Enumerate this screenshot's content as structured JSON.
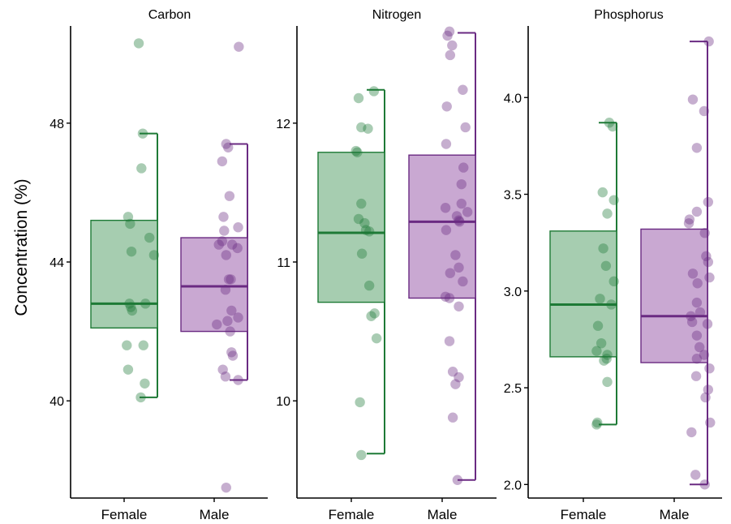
{
  "ylabel": "Concentration (%)",
  "colors": {
    "female": "#1e7a36",
    "male": "#6a2a82",
    "female_fill": "#a6cdb0",
    "male_fill": "#c9a8d2"
  },
  "chart_data": [
    {
      "type": "box-jitter",
      "title": "Carbon",
      "categories": [
        "Female",
        "Male"
      ],
      "ylim": [
        37.2,
        50.8
      ],
      "yticks": [
        40,
        44,
        48
      ],
      "ytick_labels": [
        "40",
        "44",
        "48"
      ],
      "series": [
        {
          "box": {
            "whisker_low": 40.1,
            "q1": 42.1,
            "median": 42.8,
            "q3": 45.2,
            "whisker_high": 47.7
          },
          "points": [
            {
              "j": 0.22,
              "y": 50.3
            },
            {
              "j": 0.28,
              "y": 47.7
            },
            {
              "j": 0.26,
              "y": 46.7
            },
            {
              "j": 0.06,
              "y": 45.3
            },
            {
              "j": 0.09,
              "y": 45.1
            },
            {
              "j": 0.38,
              "y": 44.7
            },
            {
              "j": 0.11,
              "y": 44.3
            },
            {
              "j": 0.45,
              "y": 44.2
            },
            {
              "j": 0.08,
              "y": 42.8
            },
            {
              "j": 0.1,
              "y": 42.7
            },
            {
              "j": 0.32,
              "y": 42.8
            },
            {
              "j": 0.12,
              "y": 42.6
            },
            {
              "j": 0.04,
              "y": 41.6
            },
            {
              "j": 0.29,
              "y": 41.6
            },
            {
              "j": 0.06,
              "y": 40.9
            },
            {
              "j": 0.31,
              "y": 40.5
            },
            {
              "j": 0.25,
              "y": 40.1
            }
          ]
        },
        {
          "box": {
            "whisker_low": 40.6,
            "q1": 42.0,
            "median": 43.3,
            "q3": 44.7,
            "whisker_high": 47.4
          },
          "points": [
            {
              "j": 0.37,
              "y": 50.2
            },
            {
              "j": 0.18,
              "y": 47.4
            },
            {
              "j": 0.21,
              "y": 47.3
            },
            {
              "j": 0.12,
              "y": 46.9
            },
            {
              "j": 0.23,
              "y": 45.9
            },
            {
              "j": 0.14,
              "y": 45.3
            },
            {
              "j": 0.36,
              "y": 45.0
            },
            {
              "j": 0.15,
              "y": 44.9
            },
            {
              "j": 0.07,
              "y": 44.5
            },
            {
              "j": 0.12,
              "y": 44.6
            },
            {
              "j": 0.27,
              "y": 44.5
            },
            {
              "j": 0.35,
              "y": 44.4
            },
            {
              "j": 0.18,
              "y": 44.2
            },
            {
              "j": 0.22,
              "y": 43.5
            },
            {
              "j": 0.25,
              "y": 43.5
            },
            {
              "j": 0.17,
              "y": 43.2
            },
            {
              "j": 0.26,
              "y": 42.6
            },
            {
              "j": 0.36,
              "y": 42.4
            },
            {
              "j": 0.04,
              "y": 42.2
            },
            {
              "j": 0.2,
              "y": 42.3
            },
            {
              "j": 0.24,
              "y": 42.0
            },
            {
              "j": 0.26,
              "y": 41.4
            },
            {
              "j": 0.28,
              "y": 41.3
            },
            {
              "j": 0.13,
              "y": 40.9
            },
            {
              "j": 0.17,
              "y": 40.7
            },
            {
              "j": 0.36,
              "y": 40.6
            },
            {
              "j": 0.18,
              "y": 37.5
            }
          ]
        }
      ]
    },
    {
      "type": "box-jitter",
      "title": "Nitrogen",
      "categories": [
        "Female",
        "Male"
      ],
      "ylim": [
        9.3,
        12.7
      ],
      "yticks": [
        10,
        11,
        12
      ],
      "ytick_labels": [
        "10",
        "11",
        "12"
      ],
      "series": [
        {
          "box": {
            "whisker_low": 9.62,
            "q1": 10.71,
            "median": 11.21,
            "q3": 11.79,
            "whisker_high": 12.24
          },
          "points": [
            {
              "j": 0.34,
              "y": 12.23
            },
            {
              "j": 0.11,
              "y": 12.18
            },
            {
              "j": 0.15,
              "y": 11.97
            },
            {
              "j": 0.25,
              "y": 11.96
            },
            {
              "j": 0.07,
              "y": 11.8
            },
            {
              "j": 0.09,
              "y": 11.79
            },
            {
              "j": 0.15,
              "y": 11.42
            },
            {
              "j": 0.11,
              "y": 11.31
            },
            {
              "j": 0.2,
              "y": 11.28
            },
            {
              "j": 0.22,
              "y": 11.23
            },
            {
              "j": 0.27,
              "y": 11.22
            },
            {
              "j": 0.16,
              "y": 11.06
            },
            {
              "j": 0.27,
              "y": 10.83
            },
            {
              "j": 0.35,
              "y": 10.63
            },
            {
              "j": 0.3,
              "y": 10.61
            },
            {
              "j": 0.38,
              "y": 10.45
            },
            {
              "j": 0.13,
              "y": 9.99
            },
            {
              "j": 0.15,
              "y": 9.61
            }
          ]
        },
        {
          "box": {
            "whisker_low": 9.43,
            "q1": 10.74,
            "median": 11.29,
            "q3": 11.77,
            "whisker_high": 12.65
          },
          "points": [
            {
              "j": 0.11,
              "y": 12.66
            },
            {
              "j": 0.08,
              "y": 12.63
            },
            {
              "j": 0.15,
              "y": 12.56
            },
            {
              "j": 0.12,
              "y": 12.49
            },
            {
              "j": 0.31,
              "y": 12.24
            },
            {
              "j": 0.07,
              "y": 12.12
            },
            {
              "j": 0.35,
              "y": 11.97
            },
            {
              "j": 0.06,
              "y": 11.85
            },
            {
              "j": 0.32,
              "y": 11.68
            },
            {
              "j": 0.29,
              "y": 11.56
            },
            {
              "j": 0.29,
              "y": 11.42
            },
            {
              "j": 0.05,
              "y": 11.39
            },
            {
              "j": 0.38,
              "y": 11.36
            },
            {
              "j": 0.22,
              "y": 11.33
            },
            {
              "j": 0.25,
              "y": 11.3
            },
            {
              "j": 0.26,
              "y": 11.29
            },
            {
              "j": 0.06,
              "y": 11.23
            },
            {
              "j": 0.2,
              "y": 11.05
            },
            {
              "j": 0.25,
              "y": 10.96
            },
            {
              "j": 0.12,
              "y": 10.92
            },
            {
              "j": 0.31,
              "y": 10.86
            },
            {
              "j": 0.05,
              "y": 10.75
            },
            {
              "j": 0.11,
              "y": 10.74
            },
            {
              "j": 0.25,
              "y": 10.68
            },
            {
              "j": 0.11,
              "y": 10.43
            },
            {
              "j": 0.16,
              "y": 10.21
            },
            {
              "j": 0.25,
              "y": 10.17
            },
            {
              "j": 0.2,
              "y": 10.12
            },
            {
              "j": 0.16,
              "y": 9.88
            },
            {
              "j": 0.23,
              "y": 9.43
            }
          ]
        }
      ]
    },
    {
      "type": "box-jitter",
      "title": "Phosphorus",
      "categories": [
        "Female",
        "Male"
      ],
      "ylim": [
        1.93,
        4.37
      ],
      "yticks": [
        2.0,
        2.5,
        3.0,
        3.5,
        4.0
      ],
      "ytick_labels": [
        "2.0",
        "2.5",
        "3.0",
        "3.5",
        "4.0"
      ],
      "series": [
        {
          "box": {
            "whisker_low": 2.31,
            "q1": 2.66,
            "median": 2.93,
            "q3": 3.31,
            "whisker_high": 3.87
          },
          "points": [
            {
              "j": 0.39,
              "y": 3.87
            },
            {
              "j": 0.44,
              "y": 3.85
            },
            {
              "j": 0.29,
              "y": 3.51
            },
            {
              "j": 0.46,
              "y": 3.47
            },
            {
              "j": 0.36,
              "y": 3.4
            },
            {
              "j": 0.3,
              "y": 3.22
            },
            {
              "j": 0.34,
              "y": 3.13
            },
            {
              "j": 0.46,
              "y": 3.05
            },
            {
              "j": 0.25,
              "y": 2.96
            },
            {
              "j": 0.42,
              "y": 2.93
            },
            {
              "j": 0.22,
              "y": 2.82
            },
            {
              "j": 0.27,
              "y": 2.73
            },
            {
              "j": 0.2,
              "y": 2.69
            },
            {
              "j": 0.36,
              "y": 2.67
            },
            {
              "j": 0.35,
              "y": 2.65
            },
            {
              "j": 0.31,
              "y": 2.64
            },
            {
              "j": 0.36,
              "y": 2.53
            },
            {
              "j": 0.21,
              "y": 2.32
            },
            {
              "j": 0.2,
              "y": 2.31
            }
          ]
        },
        {
          "box": {
            "whisker_low": 2.0,
            "q1": 2.63,
            "median": 2.87,
            "q3": 3.32,
            "whisker_high": 4.29
          },
          "points": [
            {
              "j": 0.52,
              "y": 4.29
            },
            {
              "j": 0.28,
              "y": 3.99
            },
            {
              "j": 0.45,
              "y": 3.93
            },
            {
              "j": 0.34,
              "y": 3.74
            },
            {
              "j": 0.51,
              "y": 3.46
            },
            {
              "j": 0.34,
              "y": 3.41
            },
            {
              "j": 0.23,
              "y": 3.37
            },
            {
              "j": 0.22,
              "y": 3.35
            },
            {
              "j": 0.46,
              "y": 3.3
            },
            {
              "j": 0.48,
              "y": 3.18
            },
            {
              "j": 0.51,
              "y": 3.15
            },
            {
              "j": 0.28,
              "y": 3.09
            },
            {
              "j": 0.53,
              "y": 3.07
            },
            {
              "j": 0.35,
              "y": 3.04
            },
            {
              "j": 0.34,
              "y": 2.94
            },
            {
              "j": 0.39,
              "y": 2.89
            },
            {
              "j": 0.25,
              "y": 2.87
            },
            {
              "j": 0.27,
              "y": 2.84
            },
            {
              "j": 0.5,
              "y": 2.83
            },
            {
              "j": 0.34,
              "y": 2.77
            },
            {
              "j": 0.38,
              "y": 2.71
            },
            {
              "j": 0.45,
              "y": 2.67
            },
            {
              "j": 0.34,
              "y": 2.65
            },
            {
              "j": 0.53,
              "y": 2.6
            },
            {
              "j": 0.33,
              "y": 2.56
            },
            {
              "j": 0.51,
              "y": 2.49
            },
            {
              "j": 0.47,
              "y": 2.45
            },
            {
              "j": 0.54,
              "y": 2.32
            },
            {
              "j": 0.26,
              "y": 2.27
            },
            {
              "j": 0.32,
              "y": 2.05
            },
            {
              "j": 0.46,
              "y": 2.0
            }
          ]
        }
      ]
    }
  ]
}
